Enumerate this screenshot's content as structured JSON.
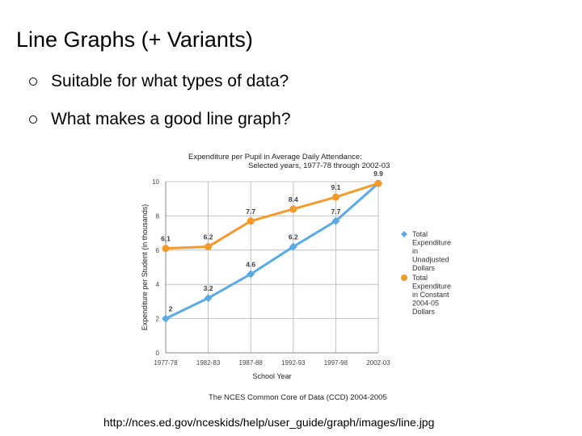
{
  "slide": {
    "title": "Line Graphs (+ Variants)",
    "bullets": [
      "Suitable for what types of data?",
      "What makes a good line graph?"
    ],
    "source_url": "http://nces.ed.gov/nceskids/help/user_guide/graph/images/line.jpg"
  },
  "chart_data": {
    "type": "line",
    "title": "Expenditure per Pupil in Average Daily Attendance: Selected years, 1977-78 through 2002-03",
    "xlabel": "School Year",
    "ylabel": "Expenditure per Student (in thousands)",
    "footer": "The NCES Common Core of Data (CCD) 2004-2005",
    "categories": [
      "1977-78",
      "1982-83",
      "1987-88",
      "1992-93",
      "1997-98",
      "2002-03"
    ],
    "ylim": [
      0,
      10
    ],
    "yticks": [
      0,
      2,
      4,
      6,
      8,
      10
    ],
    "grid": true,
    "legend_position": "right",
    "series": [
      {
        "name": "Total Expenditure in Unadjusted Dollars",
        "legend_lines": [
          "Total",
          "Expenditure",
          "in",
          "Unadjusted",
          "Dollars"
        ],
        "color": "#5aaae6",
        "marker": "diamond",
        "values": [
          2,
          3.2,
          4.6,
          6.2,
          7.7,
          9.9
        ],
        "labels": [
          "2",
          "3.2",
          "4.6",
          "6.2",
          "7.7",
          ""
        ]
      },
      {
        "name": "Total Expenditure in Constant 2004-05 Dollars",
        "legend_lines": [
          "Total",
          "Expenditure",
          "in Constant",
          "2004-05",
          "Dollars"
        ],
        "color": "#f39a2b",
        "marker": "circle",
        "values": [
          6.1,
          6.2,
          7.7,
          8.4,
          9.1,
          9.9
        ],
        "labels": [
          "6.1",
          "6.2",
          "7.7",
          "8.4",
          "9.1",
          "9.9"
        ]
      }
    ]
  }
}
